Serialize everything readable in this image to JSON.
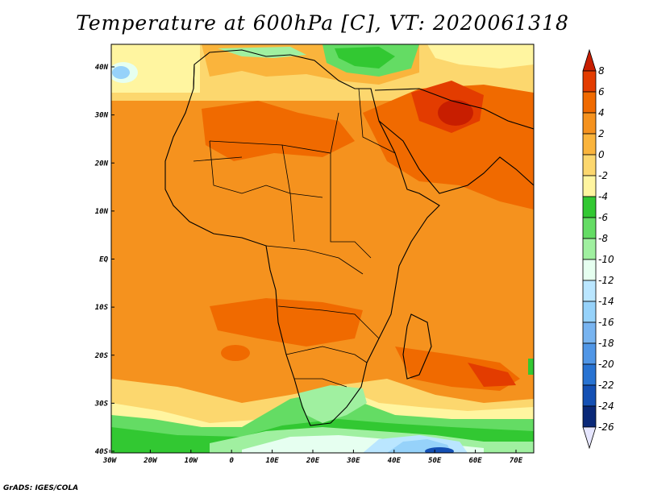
{
  "title": "Temperature at 600hPa [C], VT: 2020061318",
  "footer": "GrADS: IGES/COLA",
  "map": {
    "lat_labels": [
      "40N",
      "30N",
      "20N",
      "10N",
      "EQ",
      "10S",
      "20S",
      "30S",
      "40S"
    ],
    "lon_labels": [
      "30W",
      "20W",
      "10W",
      "0",
      "10E",
      "20E",
      "30E",
      "40E",
      "50E",
      "60E",
      "70E"
    ]
  },
  "colorbar": {
    "labels": [
      "8",
      "6",
      "4",
      "2",
      "0",
      "-2",
      "-4",
      "-6",
      "-8",
      "-10",
      "-12",
      "-14",
      "-16",
      "-18",
      "-20",
      "-22",
      "-24",
      "-26"
    ],
    "colors": [
      "#c81e00",
      "#e33c00",
      "#f06a00",
      "#f5921e",
      "#fab43c",
      "#fcd76e",
      "#fff5a0",
      "#32c832",
      "#64dc64",
      "#a0f0a0",
      "#e6fff0",
      "#bae6ff",
      "#96d2fa",
      "#78b4f0",
      "#5096e6",
      "#2873d2",
      "#1450b4",
      "#0a2878",
      "#e6e6ff"
    ]
  },
  "palette": {
    "land_outline": "#000000",
    "frame": "#000000"
  }
}
